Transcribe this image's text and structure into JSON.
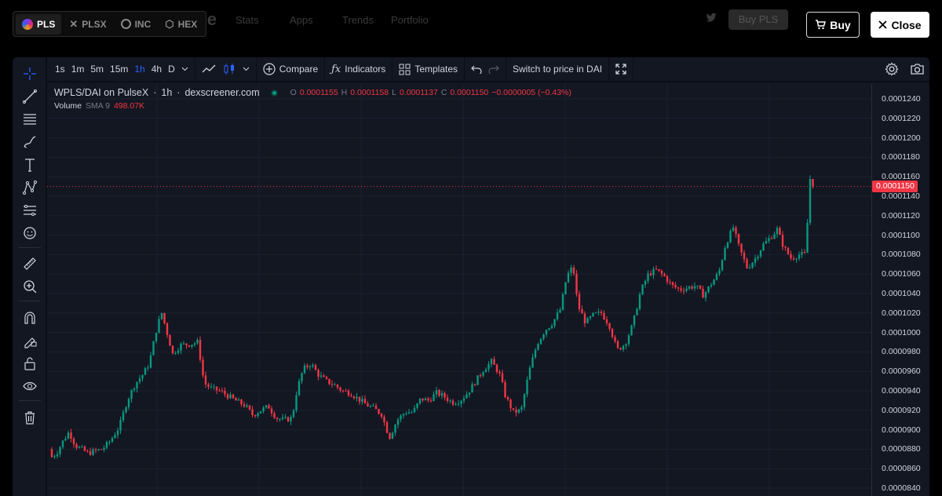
{
  "header": {
    "logo_text": "ulse",
    "nav": [
      "Stats",
      "Apps",
      "Trends",
      "Portfolio"
    ],
    "buy_pls_label": "Buy PLS",
    "chain_tabs": [
      {
        "label": "PLS",
        "active": true,
        "color": "#c026d3"
      },
      {
        "label": "PLSX",
        "active": false
      },
      {
        "label": "INC",
        "active": false
      },
      {
        "label": "HEX",
        "active": false
      }
    ],
    "buy_label": "Buy",
    "close_label": "Close"
  },
  "toolbar": {
    "intervals": [
      "1s",
      "1m",
      "5m",
      "15m",
      "1h",
      "4h",
      "D"
    ],
    "active_interval": "1h",
    "compare_label": "Compare",
    "indicators_label": "Indicators",
    "templates_label": "Templates",
    "switch_label": "Switch to price in DAI"
  },
  "legend": {
    "pair": "WPLS/DAI on PulseX",
    "interval": "1h",
    "source": "dexscreener.com",
    "open_label": "O",
    "open": "0.0001155",
    "high_label": "H",
    "high": "0.0001158",
    "low_label": "L",
    "low": "0.0001137",
    "close_label": "C",
    "close": "0.0001150",
    "change": "−0.0000005 (−0.43%)",
    "volume_label": "Volume",
    "sma_label": "SMA 9",
    "volume_value": "498.07K"
  },
  "price_axis": {
    "ticks": [
      "0.0001240",
      "0.0001220",
      "0.0001200",
      "0.0001180",
      "0.0001160",
      "0.0001140",
      "0.0001120",
      "0.0001100",
      "0.0001080",
      "0.0001060",
      "0.0001040",
      "0.0001020",
      "0.0001000",
      "0.0000980",
      "0.0000960",
      "0.0000940",
      "0.0000920",
      "0.0000900",
      "0.0000880",
      "0.0000860",
      "0.0000840"
    ],
    "current_price": "0.0001150"
  },
  "colors": {
    "up": "#089981",
    "down": "#f23645",
    "background": "#131722",
    "accent": "#2962ff"
  }
}
